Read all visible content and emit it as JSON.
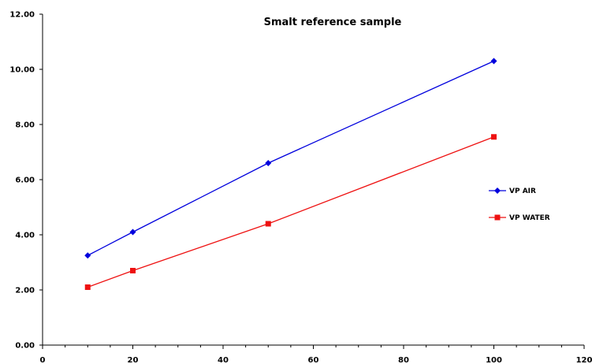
{
  "chart_data": {
    "type": "line",
    "title": "Smalt reference sample",
    "xlabel": "",
    "ylabel": "",
    "xlim": [
      0,
      120
    ],
    "ylim": [
      0,
      12
    ],
    "x_ticks": [
      "0",
      "20",
      "40",
      "60",
      "80",
      "100",
      "120"
    ],
    "y_ticks": [
      "0.00",
      "2.00",
      "4.00",
      "6.00",
      "8.00",
      "10.00",
      "12.00"
    ],
    "grid": false,
    "legend_position": "right",
    "series": [
      {
        "name": "VP AIR",
        "color": "#0000dd",
        "marker": "diamond",
        "x": [
          10,
          20,
          50,
          100
        ],
        "y": [
          3.25,
          4.1,
          6.6,
          10.3
        ]
      },
      {
        "name": "VP WATER",
        "color": "#ee1111",
        "marker": "square",
        "x": [
          10,
          20,
          50,
          100
        ],
        "y": [
          2.1,
          2.7,
          4.4,
          7.55
        ]
      }
    ]
  }
}
